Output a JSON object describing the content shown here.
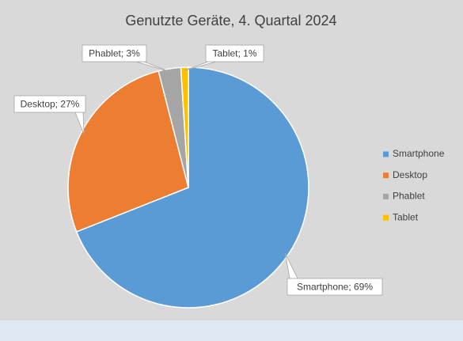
{
  "chart_data": {
    "type": "pie",
    "title": "Genutzte Geräte, 4. Quartal 2024",
    "categories": [
      "Smartphone",
      "Desktop",
      "Phablet",
      "Tablet"
    ],
    "values": [
      69,
      27,
      3,
      1
    ],
    "value_labels": [
      "Smartphone; 69%",
      "Desktop; 27%",
      "Phablet; 3%",
      "Tablet; 1%"
    ],
    "colors": [
      "#5b9bd5",
      "#ed7d31",
      "#a5a5a5",
      "#ffc000"
    ],
    "legend": "right"
  }
}
